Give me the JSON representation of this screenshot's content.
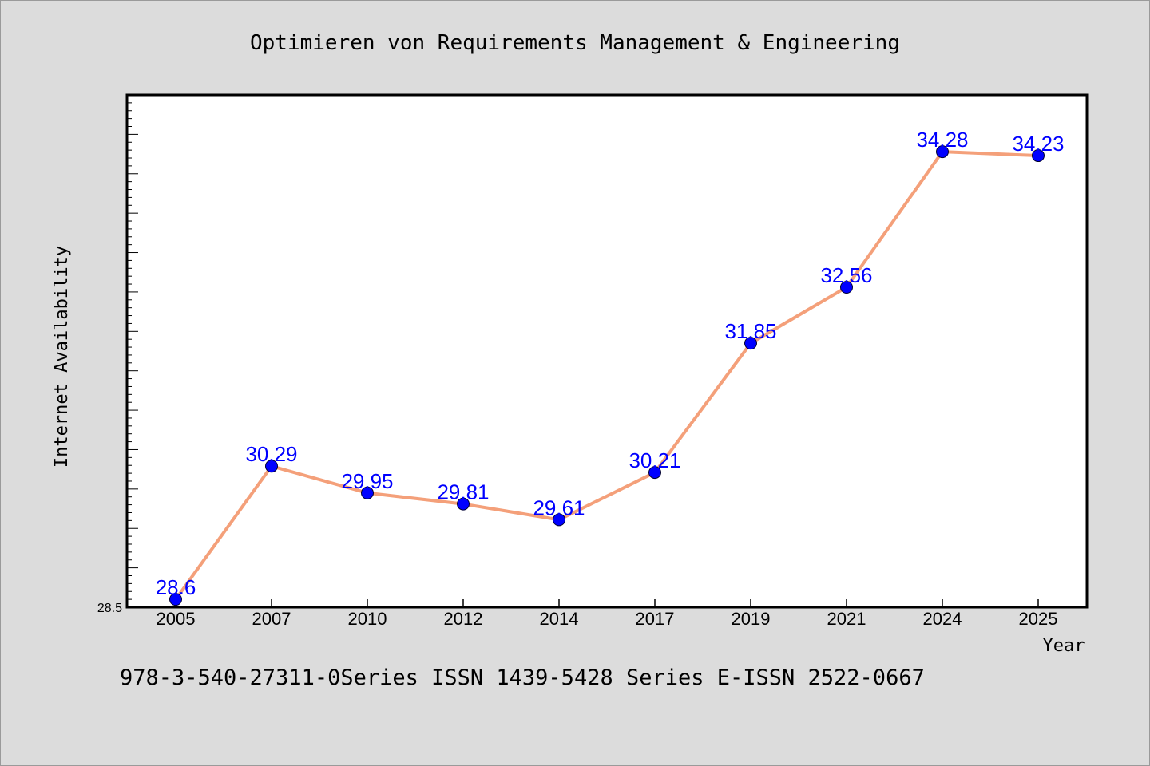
{
  "chart_data": {
    "type": "line",
    "title": "Optimieren von Requirements Management & Engineering",
    "xlabel": "Year",
    "ylabel": "Internet Availability",
    "categories": [
      "2005",
      "2007",
      "2010",
      "2012",
      "2014",
      "2017",
      "2019",
      "2021",
      "2024",
      "2025"
    ],
    "series": [
      {
        "values": [
          28.6,
          30.29,
          29.95,
          29.81,
          29.61,
          30.21,
          31.85,
          32.56,
          34.28,
          34.23
        ]
      }
    ],
    "data_labels": [
      "28.6",
      "30.29",
      "29.95",
      "29.81",
      "29.61",
      "30.21",
      "31.85",
      "32.56",
      "34.28",
      "34.23"
    ],
    "yticks": [
      "28.5"
    ],
    "ylim": [
      28.5,
      35.0
    ],
    "grid": false,
    "colors": {
      "line": "#f4a07a",
      "marker": "#0000ff",
      "label": "#0000ff"
    }
  },
  "footer": "978-3-540-27311-0Series ISSN 1439-5428 Series E-ISSN 2522-0667"
}
